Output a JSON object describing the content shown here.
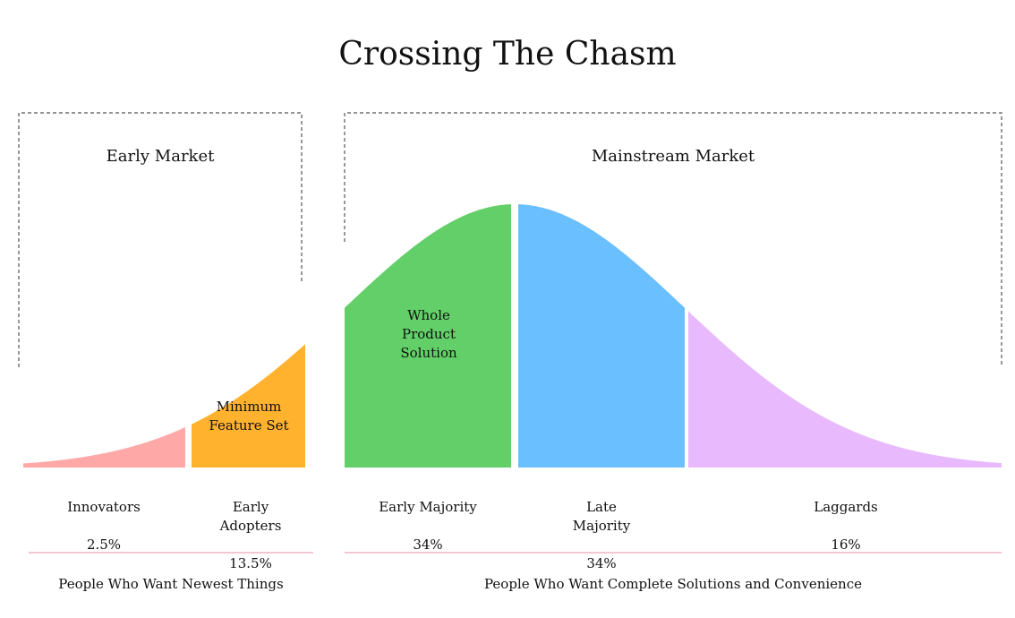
{
  "title": "Crossing The Chasm",
  "markets": {
    "early": {
      "label": "Early Market",
      "footer": "People Who Want Newest Things"
    },
    "mainstream": {
      "label": "Mainstream Market",
      "footer": "People Who Want Complete Solutions and Convenience"
    }
  },
  "inner_labels": {
    "minimum_feature_set": "Minimum\nFeature Set",
    "whole_product_solution": "Whole\nProduct\nSolution"
  },
  "segments": [
    {
      "name": "Innovators",
      "label": "Innovators",
      "percent": "2.5%",
      "color": "#FFA8A8"
    },
    {
      "name": "Early Adopters",
      "label": "Early\nAdopters",
      "percent": "13.5%",
      "color": "#FFB22E"
    },
    {
      "name": "Early Majority",
      "label": "Early Majority",
      "percent": "34%",
      "color": "#62CF68"
    },
    {
      "name": "Late Majority",
      "label": "Late\nMajority",
      "percent": "34%",
      "color": "#6ABFFF"
    },
    {
      "name": "Laggards",
      "label": "Laggards",
      "percent": "16%",
      "color": "#E8BAFD"
    }
  ],
  "colors": {
    "box_border": "#555555",
    "footer_rule": "#E9A3B4"
  }
}
